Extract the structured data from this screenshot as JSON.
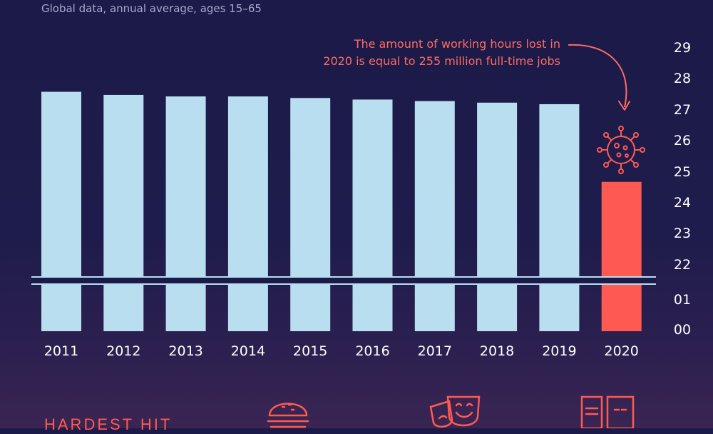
{
  "subtitle": "Global data, annual average, ages 15–65",
  "annotation": {
    "line1": "The amount of working hours lost in",
    "line2": "2020 is equal to 255 million full-time jobs"
  },
  "section_title": "HARDEST HIT",
  "icons": {
    "virus": "virus-icon",
    "food": "burger-icon",
    "arts": "theater-masks-icon",
    "transport": "truck-icon"
  },
  "colors": {
    "background": "#1b1a48",
    "bar": "#b9def0",
    "highlight": "#ff5a52",
    "text": "#ffffff",
    "subtitle": "#a6a9cf"
  },
  "chart_data": {
    "type": "bar",
    "categories": [
      "2011",
      "2012",
      "2013",
      "2014",
      "2015",
      "2016",
      "2017",
      "2018",
      "2019",
      "2020"
    ],
    "values": [
      27.55,
      27.45,
      27.4,
      27.4,
      27.35,
      27.3,
      27.25,
      27.2,
      27.15,
      24.65
    ],
    "highlight_index": 9,
    "y_tick_labels": [
      "00",
      "01",
      "22",
      "23",
      "24",
      "25",
      "26",
      "27",
      "28",
      "29"
    ],
    "axis_break": true,
    "y_axis_position": "right",
    "grid": false
  }
}
